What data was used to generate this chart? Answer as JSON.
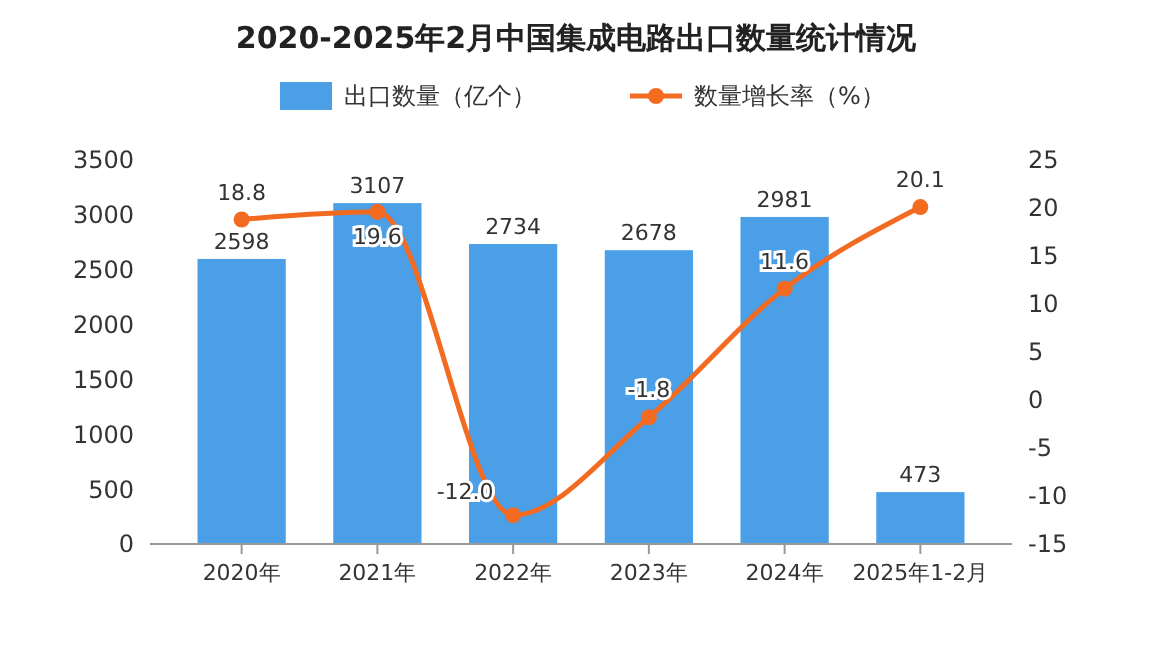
{
  "chart_data": {
    "type": "bar",
    "title": "2020-2025年2月中国集成电路出口数量统计情况",
    "categories": [
      "2020年",
      "2021年",
      "2022年",
      "2023年",
      "2024年",
      "2025年1-2月"
    ],
    "series": [
      {
        "name": "出口数量（亿个）",
        "color": "#4a9fe6",
        "values": [
          2598,
          3107,
          2734,
          2678,
          2981,
          473
        ]
      },
      {
        "name": "数量增长率（%）",
        "type": "line",
        "axis": "y2",
        "color": "#f26b21",
        "values": [
          18.8,
          19.6,
          -12.0,
          -1.8,
          11.6,
          20.1
        ],
        "value_labels": [
          "18.8",
          "19.6",
          "-12.0",
          "-1.8",
          "11.6",
          "20.1"
        ]
      }
    ],
    "ylim": [
      0,
      3500
    ],
    "yticks": [
      0,
      500,
      1000,
      1500,
      2000,
      2500,
      3000,
      3500
    ],
    "y2lim": [
      -15,
      25
    ],
    "y2ticks": [
      -15,
      -10,
      -5,
      0,
      5,
      10,
      15,
      20,
      25
    ],
    "data_labels": true,
    "legend": "top",
    "marker": "circle"
  }
}
